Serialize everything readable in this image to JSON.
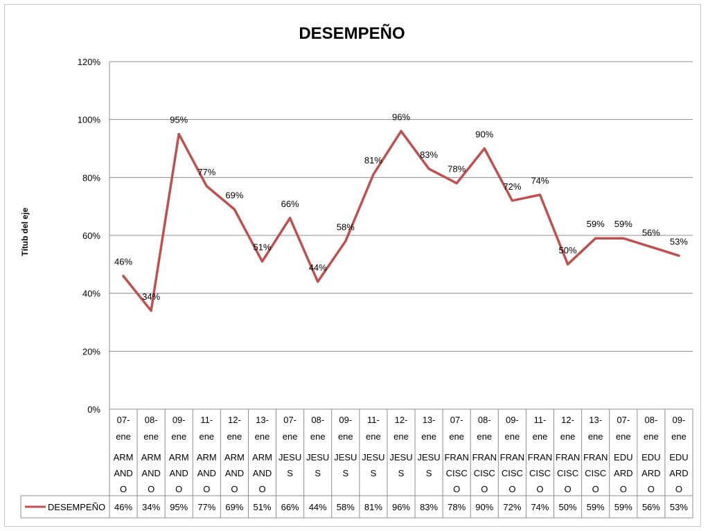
{
  "chart_data": {
    "type": "line",
    "title": "DESEMPEÑO",
    "ylabel": "Títub del eje",
    "xlabel": "",
    "ylim": [
      0,
      1.2
    ],
    "y_ticks": [
      0,
      0.2,
      0.4,
      0.6,
      0.8,
      1.0,
      1.2
    ],
    "y_tick_labels": [
      "0%",
      "20%",
      "40%",
      "60%",
      "80%",
      "100%",
      "120%"
    ],
    "grid": true,
    "legend_position": "data-table",
    "category_dates": [
      [
        "07-",
        "ene"
      ],
      [
        "08-",
        "ene"
      ],
      [
        "09-",
        "ene"
      ],
      [
        "11-",
        "ene"
      ],
      [
        "12-",
        "ene"
      ],
      [
        "13-",
        "ene"
      ],
      [
        "07-",
        "ene"
      ],
      [
        "08-",
        "ene"
      ],
      [
        "09-",
        "ene"
      ],
      [
        "11-",
        "ene"
      ],
      [
        "12-",
        "ene"
      ],
      [
        "13-",
        "ene"
      ],
      [
        "07-",
        "ene"
      ],
      [
        "08-",
        "ene"
      ],
      [
        "09-",
        "ene"
      ],
      [
        "11-",
        "ene"
      ],
      [
        "12-",
        "ene"
      ],
      [
        "13-",
        "ene"
      ],
      [
        "07-",
        "ene"
      ],
      [
        "08-",
        "ene"
      ],
      [
        "09-",
        "ene"
      ]
    ],
    "category_names": [
      [
        "ARM",
        "AND",
        "O"
      ],
      [
        "ARM",
        "AND",
        "O"
      ],
      [
        "ARM",
        "AND",
        "O"
      ],
      [
        "ARM",
        "AND",
        "O"
      ],
      [
        "ARM",
        "AND",
        "O"
      ],
      [
        "ARM",
        "AND",
        "O"
      ],
      [
        "JESU",
        "S"
      ],
      [
        "JESU",
        "S"
      ],
      [
        "JESU",
        "S"
      ],
      [
        "JESU",
        "S"
      ],
      [
        "JESU",
        "S"
      ],
      [
        "JESU",
        "S"
      ],
      [
        "FRAN",
        "CISC",
        "O"
      ],
      [
        "FRAN",
        "CISC",
        "O"
      ],
      [
        "FRAN",
        "CISC",
        "O"
      ],
      [
        "FRAN",
        "CISC",
        "O"
      ],
      [
        "FRAN",
        "CISC",
        "O"
      ],
      [
        "FRAN",
        "CISC",
        "O"
      ],
      [
        "EDU",
        "ARD",
        "O"
      ],
      [
        "EDU",
        "ARD",
        "O"
      ],
      [
        "EDU",
        "ARD",
        "O"
      ]
    ],
    "series": [
      {
        "name": "DESEMPEÑO",
        "color": "#c0504d",
        "values": [
          0.46,
          0.34,
          0.95,
          0.77,
          0.69,
          0.51,
          0.66,
          0.44,
          0.58,
          0.81,
          0.96,
          0.83,
          0.78,
          0.9,
          0.72,
          0.74,
          0.5,
          0.59,
          0.59,
          0.56,
          0.53
        ],
        "labels": [
          "46%",
          "34%",
          "95%",
          "77%",
          "69%",
          "51%",
          "66%",
          "44%",
          "58%",
          "81%",
          "96%",
          "83%",
          "78%",
          "90%",
          "72%",
          "74%",
          "50%",
          "59%",
          "59%",
          "56%",
          "53%"
        ]
      }
    ]
  }
}
